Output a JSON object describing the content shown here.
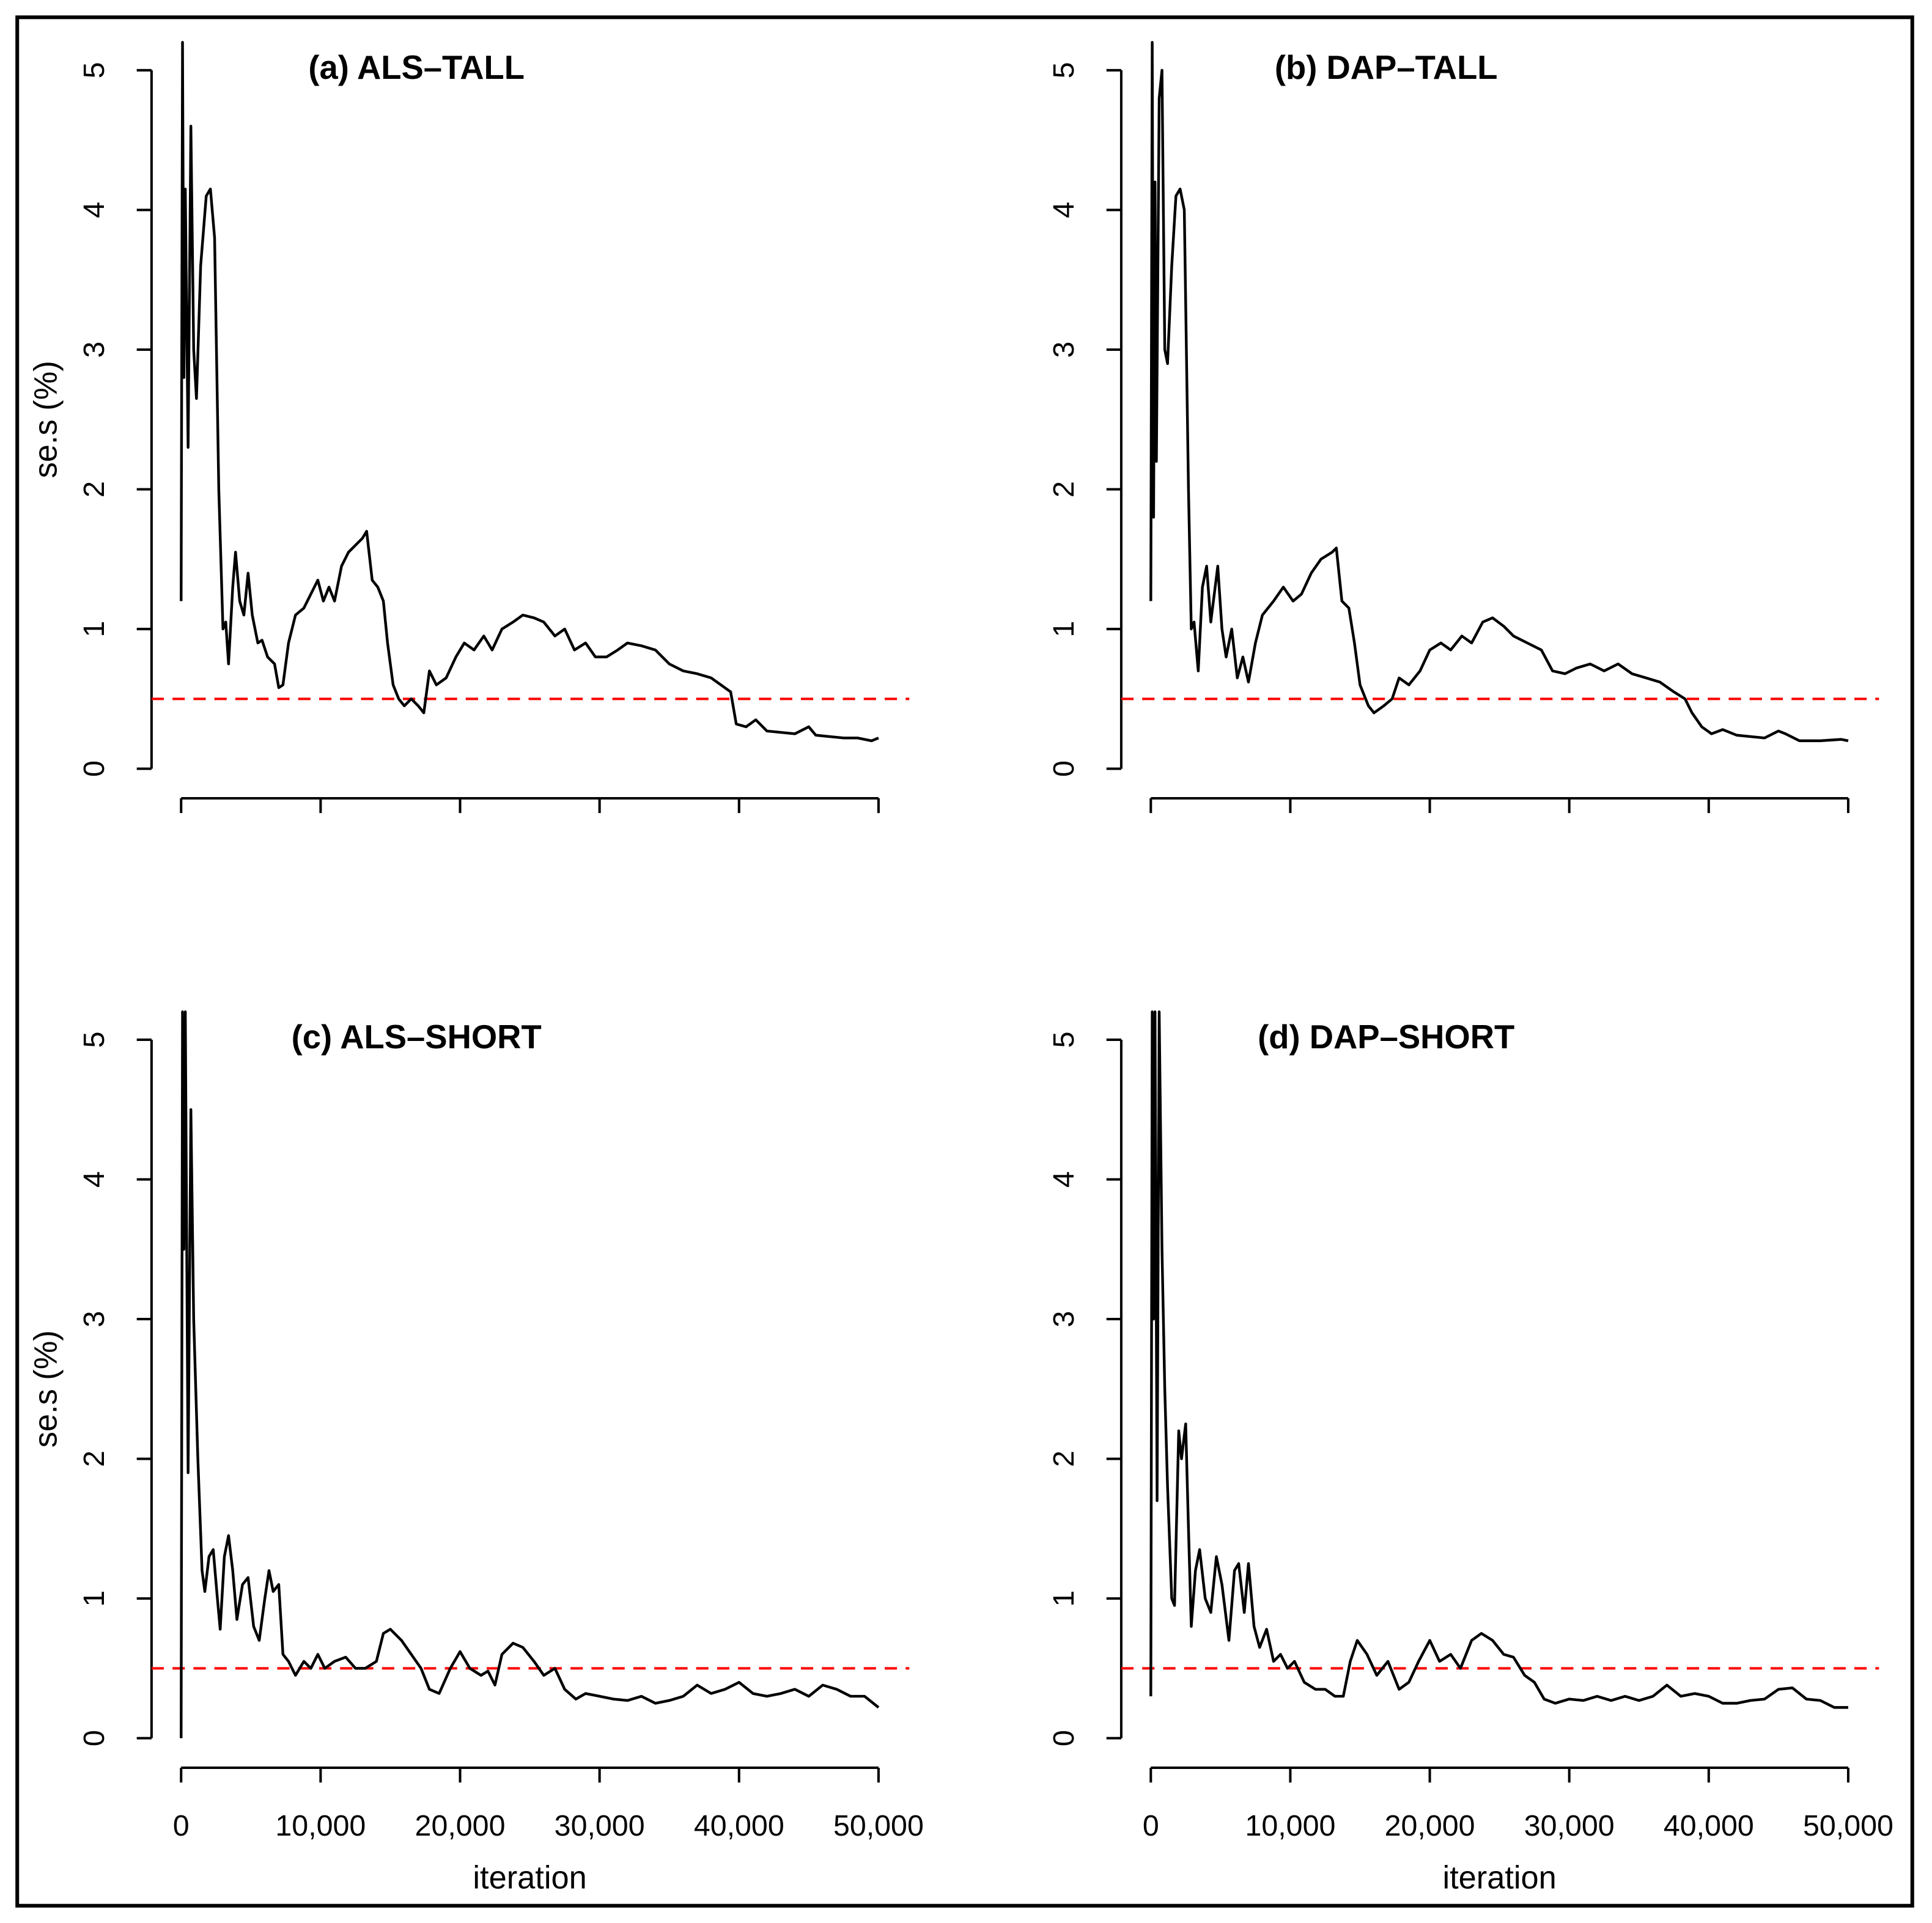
{
  "chart_data": [
    {
      "type": "line",
      "title": "(a) ALS–TALL",
      "y_label": "se.s (%)",
      "x": [
        0,
        100,
        200,
        300,
        500,
        700,
        900,
        1100,
        1400,
        1800,
        2100,
        2400,
        2700,
        3000,
        3200,
        3400,
        3700,
        3900,
        4200,
        4500,
        4800,
        5100,
        5500,
        5800,
        6200,
        6700,
        7000,
        7300,
        7700,
        8200,
        8800,
        9300,
        9800,
        10200,
        10600,
        11000,
        11500,
        12000,
        12500,
        13000,
        13300,
        13700,
        14100,
        14500,
        14800,
        15200,
        15600,
        16000,
        16500,
        17000,
        17400,
        17800,
        18300,
        19000,
        19700,
        20300,
        21000,
        21700,
        22300,
        23000,
        23800,
        24500,
        25300,
        26000,
        26800,
        27500,
        28200,
        29000,
        29700,
        30500,
        31300,
        32000,
        33000,
        34000,
        35000,
        36000,
        37000,
        38000,
        38700,
        39400,
        39800,
        40500,
        41200,
        42000,
        43000,
        44000,
        45000,
        45500,
        46500,
        47500,
        48500,
        49500,
        50000
      ],
      "series": [
        {
          "color": "#000000",
          "values": [
            1.2,
            5.2,
            2.8,
            4.15,
            2.3,
            4.6,
            3.0,
            2.65,
            3.6,
            4.1,
            4.15,
            3.8,
            2.0,
            1.0,
            1.05,
            0.75,
            1.3,
            1.55,
            1.2,
            1.1,
            1.4,
            1.1,
            0.9,
            0.92,
            0.8,
            0.75,
            0.58,
            0.6,
            0.9,
            1.1,
            1.15,
            1.25,
            1.35,
            1.2,
            1.3,
            1.2,
            1.45,
            1.55,
            1.6,
            1.65,
            1.7,
            1.35,
            1.3,
            1.2,
            0.9,
            0.6,
            0.5,
            0.45,
            0.5,
            0.45,
            0.4,
            0.7,
            0.6,
            0.65,
            0.8,
            0.9,
            0.85,
            0.95,
            0.85,
            1.0,
            1.05,
            1.1,
            1.08,
            1.05,
            0.95,
            1.0,
            0.85,
            0.9,
            0.8,
            0.8,
            0.85,
            0.9,
            0.88,
            0.85,
            0.75,
            0.7,
            0.68,
            0.65,
            0.6,
            0.55,
            0.32,
            0.3,
            0.35,
            0.27,
            0.26,
            0.25,
            0.3,
            0.24,
            0.23,
            0.22,
            0.22,
            0.2,
            0.22
          ]
        }
      ],
      "hline": {
        "value": 0.5,
        "color": "#ff0000"
      },
      "xlim": [
        0,
        50000
      ],
      "xticks": [
        0,
        10000,
        20000,
        30000,
        40000,
        50000
      ],
      "ylim": [
        0,
        5
      ],
      "yticks": [
        0,
        1,
        2,
        3,
        4,
        5
      ]
    },
    {
      "type": "line",
      "title": "(b) DAP–TALL",
      "x": [
        0,
        100,
        200,
        300,
        400,
        600,
        800,
        1000,
        1200,
        1500,
        1800,
        2100,
        2400,
        2700,
        2900,
        3100,
        3400,
        3700,
        4000,
        4300,
        4800,
        5100,
        5400,
        5800,
        6200,
        6600,
        7000,
        7500,
        8000,
        8800,
        9500,
        10200,
        10800,
        11500,
        12200,
        13000,
        13300,
        13700,
        14200,
        14600,
        15000,
        15600,
        16000,
        16700,
        17300,
        17800,
        18500,
        19300,
        20000,
        20800,
        21500,
        22300,
        23000,
        23800,
        24500,
        25300,
        26000,
        27000,
        28000,
        28800,
        29700,
        30500,
        31500,
        32500,
        33500,
        34500,
        35500,
        36500,
        37500,
        38300,
        38800,
        39500,
        40200,
        41000,
        42000,
        43000,
        44000,
        45000,
        45500,
        46500,
        48000,
        49500,
        50000
      ],
      "series": [
        {
          "color": "#000000",
          "values": [
            1.2,
            5.2,
            1.8,
            4.2,
            2.2,
            4.8,
            5.0,
            3.0,
            2.9,
            3.6,
            4.1,
            4.15,
            4.0,
            2.0,
            1.0,
            1.05,
            0.7,
            1.3,
            1.45,
            1.05,
            1.45,
            1.0,
            0.8,
            1.0,
            0.65,
            0.8,
            0.62,
            0.9,
            1.1,
            1.2,
            1.3,
            1.2,
            1.25,
            1.4,
            1.5,
            1.55,
            1.58,
            1.2,
            1.15,
            0.9,
            0.6,
            0.45,
            0.4,
            0.45,
            0.5,
            0.65,
            0.6,
            0.7,
            0.85,
            0.9,
            0.85,
            0.95,
            0.9,
            1.05,
            1.08,
            1.02,
            0.95,
            0.9,
            0.85,
            0.7,
            0.68,
            0.72,
            0.75,
            0.7,
            0.75,
            0.68,
            0.65,
            0.62,
            0.55,
            0.5,
            0.4,
            0.3,
            0.25,
            0.28,
            0.24,
            0.23,
            0.22,
            0.27,
            0.25,
            0.2,
            0.2,
            0.21,
            0.2
          ]
        }
      ],
      "hline": {
        "value": 0.5,
        "color": "#ff0000"
      },
      "xlim": [
        0,
        50000
      ],
      "xticks": [
        0,
        10000,
        20000,
        30000,
        40000,
        50000
      ],
      "ylim": [
        0,
        5
      ],
      "yticks": [
        0,
        1,
        2,
        3,
        4,
        5
      ]
    },
    {
      "type": "line",
      "title": "(c) ALS–SHORT",
      "y_label": "se.s (%)",
      "x_label": "iteration",
      "x": [
        0,
        100,
        200,
        300,
        500,
        700,
        900,
        1200,
        1500,
        1700,
        2000,
        2300,
        2600,
        2800,
        3100,
        3400,
        3700,
        4000,
        4400,
        4800,
        5200,
        5600,
        6000,
        6300,
        6600,
        7000,
        7300,
        7700,
        8200,
        8800,
        9300,
        9800,
        10300,
        11000,
        11800,
        12500,
        13200,
        14000,
        14500,
        15000,
        15800,
        16500,
        17200,
        17800,
        18500,
        19300,
        20000,
        20700,
        21500,
        22000,
        22500,
        23000,
        23800,
        24500,
        25300,
        26000,
        26800,
        27500,
        28300,
        29000,
        30000,
        31000,
        32000,
        33000,
        34000,
        35000,
        36000,
        37000,
        38000,
        39000,
        40000,
        41000,
        42000,
        43000,
        44000,
        45000,
        46000,
        47000,
        48000,
        49000,
        50000
      ],
      "series": [
        {
          "color": "#000000",
          "values": [
            0,
            5.2,
            3.5,
            5.2,
            1.9,
            4.5,
            3.0,
            2.0,
            1.2,
            1.05,
            1.3,
            1.35,
            1.0,
            0.78,
            1.3,
            1.45,
            1.2,
            0.85,
            1.1,
            1.15,
            0.8,
            0.7,
            1.0,
            1.2,
            1.05,
            1.1,
            0.6,
            0.55,
            0.45,
            0.55,
            0.5,
            0.6,
            0.5,
            0.55,
            0.58,
            0.5,
            0.5,
            0.55,
            0.75,
            0.78,
            0.7,
            0.6,
            0.5,
            0.35,
            0.32,
            0.5,
            0.62,
            0.5,
            0.45,
            0.48,
            0.38,
            0.6,
            0.68,
            0.65,
            0.55,
            0.45,
            0.5,
            0.35,
            0.28,
            0.32,
            0.3,
            0.28,
            0.27,
            0.3,
            0.25,
            0.27,
            0.3,
            0.38,
            0.32,
            0.35,
            0.4,
            0.32,
            0.3,
            0.32,
            0.35,
            0.3,
            0.38,
            0.35,
            0.3,
            0.3,
            0.22
          ]
        }
      ],
      "hline": {
        "value": 0.5,
        "color": "#ff0000"
      },
      "xlim": [
        0,
        50000
      ],
      "xticks": [
        0,
        {
          "value": 10000,
          "label": "10,000"
        },
        {
          "value": 20000,
          "label": "20,000"
        },
        {
          "value": 30000,
          "label": "30,000"
        },
        {
          "value": 40000,
          "label": "40,000"
        },
        {
          "value": 50000,
          "label": "50,000"
        }
      ],
      "ylim": [
        0,
        5
      ],
      "yticks": [
        0,
        1,
        2,
        3,
        4,
        5
      ]
    },
    {
      "type": "line",
      "title": "(d) DAP–SHORT",
      "x_label": "iteration",
      "x": [
        0,
        100,
        200,
        300,
        450,
        600,
        800,
        1000,
        1200,
        1500,
        1700,
        2000,
        2200,
        2500,
        2700,
        2900,
        3200,
        3500,
        3900,
        4300,
        4700,
        5100,
        5600,
        6000,
        6300,
        6700,
        7000,
        7400,
        7800,
        8300,
        8800,
        9300,
        9800,
        10300,
        11000,
        11800,
        12500,
        13200,
        13800,
        14300,
        14800,
        15500,
        16200,
        17000,
        17800,
        18500,
        19200,
        20000,
        20700,
        21500,
        22200,
        23000,
        23700,
        24500,
        25300,
        26000,
        26800,
        27500,
        28200,
        29000,
        30000,
        31000,
        32000,
        33000,
        34000,
        35000,
        36000,
        37000,
        38000,
        39000,
        40000,
        41000,
        42000,
        43000,
        44000,
        45000,
        46000,
        47000,
        48000,
        49000,
        50000
      ],
      "series": [
        {
          "color": "#000000",
          "values": [
            0.3,
            5.2,
            3.0,
            5.2,
            1.7,
            5.2,
            3.5,
            2.5,
            1.8,
            1.0,
            0.95,
            2.2,
            2.0,
            2.25,
            1.5,
            0.8,
            1.2,
            1.35,
            1.0,
            0.9,
            1.3,
            1.1,
            0.7,
            1.2,
            1.25,
            0.9,
            1.25,
            0.8,
            0.65,
            0.78,
            0.55,
            0.6,
            0.5,
            0.55,
            0.4,
            0.35,
            0.35,
            0.3,
            0.3,
            0.55,
            0.7,
            0.6,
            0.45,
            0.55,
            0.35,
            0.4,
            0.55,
            0.7,
            0.55,
            0.6,
            0.5,
            0.7,
            0.75,
            0.7,
            0.6,
            0.58,
            0.45,
            0.4,
            0.28,
            0.25,
            0.28,
            0.27,
            0.3,
            0.27,
            0.3,
            0.27,
            0.3,
            0.38,
            0.3,
            0.32,
            0.3,
            0.25,
            0.25,
            0.27,
            0.28,
            0.35,
            0.36,
            0.28,
            0.27,
            0.22,
            0.22
          ]
        }
      ],
      "hline": {
        "value": 0.5,
        "color": "#ff0000"
      },
      "xlim": [
        0,
        50000
      ],
      "xticks": [
        0,
        {
          "value": 10000,
          "label": "10,000"
        },
        {
          "value": 20000,
          "label": "20,000"
        },
        {
          "value": 30000,
          "label": "30,000"
        },
        {
          "value": 40000,
          "label": "40,000"
        },
        {
          "value": 50000,
          "label": "50,000"
        }
      ],
      "ylim": [
        0,
        5
      ],
      "yticks": [
        0,
        1,
        2,
        3,
        4,
        5
      ]
    }
  ]
}
